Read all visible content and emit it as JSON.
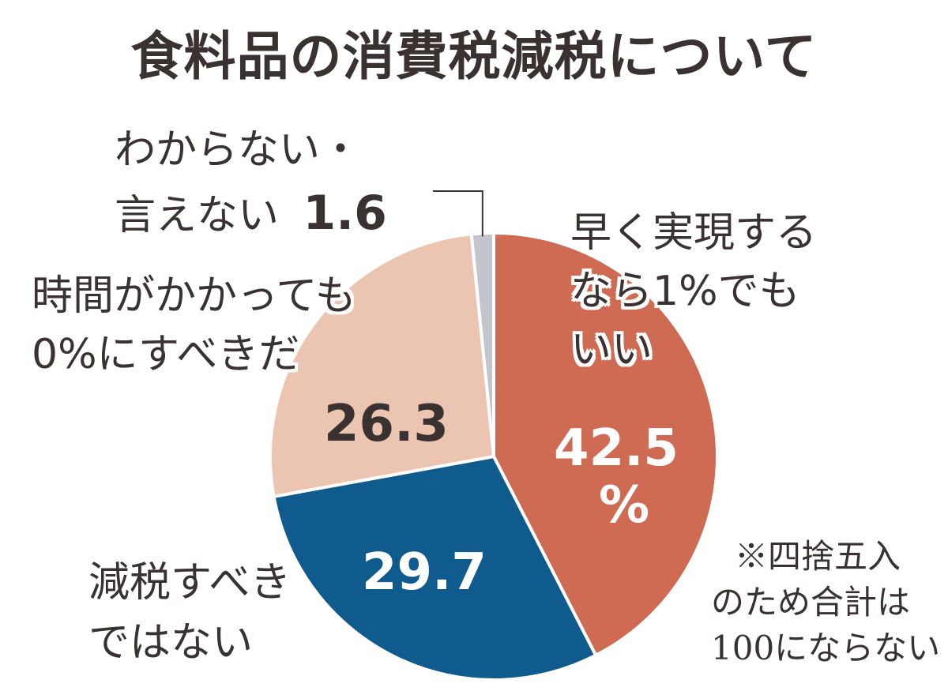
{
  "title": "食料品の消費税減税について",
  "chart_data": {
    "type": "pie",
    "title": "食料品の消費税減税について",
    "slices": [
      {
        "label_line1": "早く実現する",
        "label_line2": "なら1%でも",
        "label_line3": "いい",
        "value": 42.5,
        "value_text": "42.5",
        "unit": "%",
        "color": "#cf6a53"
      },
      {
        "label_line1": "減税すべき",
        "label_line2": "ではない",
        "value": 29.7,
        "value_text": "29.7",
        "color": "#0f5b8e"
      },
      {
        "label_line1": "時間がかかっても",
        "label_line2": "0%にすべきだ",
        "value": 26.3,
        "value_text": "26.3",
        "color": "#ecc5b2"
      },
      {
        "label_line1": "わからない・",
        "label_line2": "言えない",
        "value": 1.6,
        "value_text": "1.6",
        "color": "#c3c5cc"
      }
    ],
    "start_angle_deg": 0,
    "direction": "clockwise"
  },
  "note": {
    "line1": "※四捨五入",
    "line2": "のため合計は",
    "line3": "100にならない"
  }
}
